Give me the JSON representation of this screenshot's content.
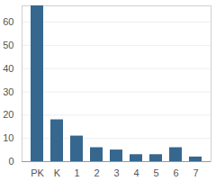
{
  "chart_data": {
    "type": "bar",
    "categories": [
      "PK",
      "K",
      "1",
      "2",
      "3",
      "4",
      "5",
      "6",
      "7"
    ],
    "values": [
      67,
      18,
      11,
      6,
      5,
      3,
      3,
      6,
      2
    ],
    "color": "#36678f",
    "ylim": [
      0,
      67
    ],
    "yticks": [
      0,
      10,
      20,
      30,
      40,
      50,
      60
    ],
    "grid": true
  }
}
